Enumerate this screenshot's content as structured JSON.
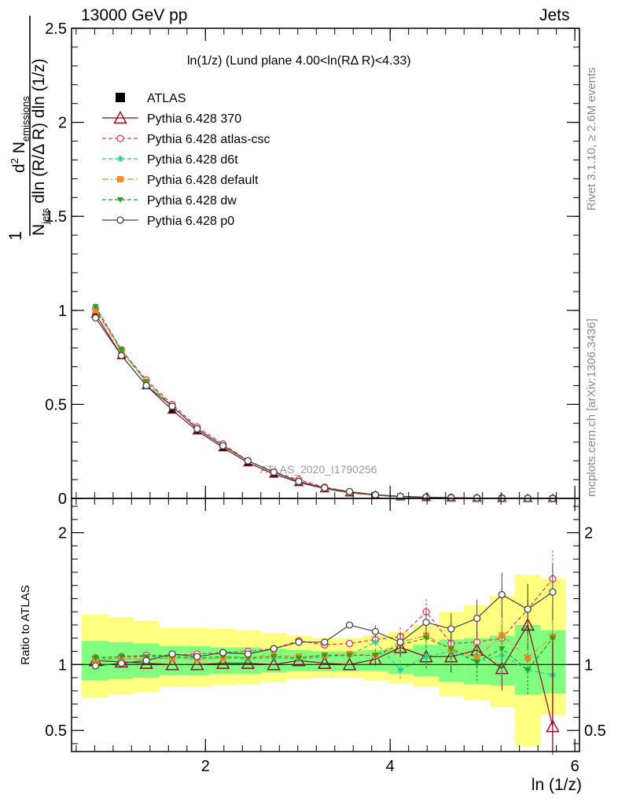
{
  "header": {
    "left": "13000 GeV pp",
    "right": "Jets"
  },
  "side": {
    "rivet": "Rivet 3.1.10, ≥ 2.6M events",
    "mcplots": "mcplots.cern.ch [arXiv:1306.3436]"
  },
  "plot_title": "ln(1/z) (Lund plane 4.00<ln(RΔ R)<4.33)",
  "watermark": "ATLAS_2020_I1790256",
  "ylabel_top": {
    "one": "1",
    "njets": "N",
    "njets_sub": "jets",
    "den_rest": " dln (R/Δ R) dln (1/z)",
    "num_d": "d",
    "num_sup": "2",
    "num_n": " N",
    "num_sub": "emissions"
  },
  "ylabel_ratio": "Ratio to ATLAS",
  "xlabel": "ln (1/z)",
  "colors": {
    "atlas": "#000000",
    "p370": "#8b0a1e",
    "atlas_csc": "#ee3355",
    "d6t": "#22cc99",
    "default": "#f58a2a",
    "dw": "#1aa61a",
    "p0": "#444444",
    "band_yellow": "#ffff80",
    "band_green": "#80ff80"
  },
  "chart_data": [
    {
      "type": "line",
      "panel": "main",
      "xlim": [
        0.55,
        6.05
      ],
      "ylim": [
        0,
        2.5
      ],
      "yticks": [
        "0",
        "0.5",
        "1",
        "1.5",
        "2",
        "2.5"
      ],
      "x": [
        0.81,
        1.09,
        1.36,
        1.64,
        1.91,
        2.19,
        2.46,
        2.74,
        3.01,
        3.29,
        3.56,
        3.84,
        4.11,
        4.39,
        4.66,
        4.94,
        5.21,
        5.49,
        5.76
      ],
      "series": [
        {
          "name": "ATLAS",
          "style": "data",
          "values": [
            0.98,
            0.76,
            0.6,
            0.47,
            0.36,
            0.27,
            0.19,
            0.13,
            0.085,
            0.052,
            0.03,
            0.017,
            0.009,
            0.005,
            0.003,
            0.0015,
            0.0008,
            0.0004,
            0.0002
          ]
        },
        {
          "name": "Pythia 6.428 370",
          "style": "370",
          "values": [
            0.98,
            0.76,
            0.6,
            0.47,
            0.36,
            0.27,
            0.19,
            0.13,
            0.085,
            0.052,
            0.03,
            0.017,
            0.009,
            0.005,
            0.003,
            0.0015,
            0.0008,
            0.0004,
            0.0002
          ]
        },
        {
          "name": "Pythia 6.428 atlas-csc",
          "style": "csc",
          "values": [
            1.01,
            0.79,
            0.63,
            0.5,
            0.38,
            0.29,
            0.2,
            0.14,
            0.1,
            0.06,
            0.036,
            0.02,
            0.011,
            0.007,
            0.004,
            0.002,
            0.001,
            0.0005,
            0.0003
          ]
        },
        {
          "name": "Pythia 6.428 d6t",
          "style": "d6t",
          "values": [
            1.02,
            0.79,
            0.62,
            0.49,
            0.37,
            0.28,
            0.2,
            0.14,
            0.09,
            0.056,
            0.034,
            0.02,
            0.009,
            0.006,
            0.003,
            0.0015,
            0.0008,
            0.0004,
            0.0002
          ]
        },
        {
          "name": "Pythia 6.428 default",
          "style": "default",
          "values": [
            1.0,
            0.78,
            0.62,
            0.49,
            0.37,
            0.28,
            0.2,
            0.14,
            0.09,
            0.055,
            0.033,
            0.018,
            0.01,
            0.006,
            0.003,
            0.0016,
            0.0009,
            0.0004,
            0.0002
          ]
        },
        {
          "name": "Pythia 6.428 dw",
          "style": "dw",
          "values": [
            1.02,
            0.79,
            0.62,
            0.49,
            0.37,
            0.28,
            0.2,
            0.14,
            0.09,
            0.056,
            0.034,
            0.019,
            0.01,
            0.006,
            0.003,
            0.0016,
            0.0009,
            0.0004,
            0.0002
          ]
        },
        {
          "name": "Pythia 6.428 p0",
          "style": "p0",
          "values": [
            0.96,
            0.76,
            0.6,
            0.49,
            0.37,
            0.28,
            0.2,
            0.14,
            0.09,
            0.056,
            0.036,
            0.019,
            0.011,
            0.007,
            0.004,
            0.002,
            0.0012,
            0.0006,
            0.0003
          ]
        }
      ]
    },
    {
      "type": "line",
      "panel": "ratio",
      "xlim": [
        0.55,
        6.05
      ],
      "ylim": [
        0.34,
        2.26
      ],
      "yticks": [
        "0.5",
        "1",
        "2"
      ],
      "xticks": [
        "2",
        "4",
        "6"
      ],
      "x": [
        0.81,
        1.09,
        1.36,
        1.64,
        1.91,
        2.19,
        2.46,
        2.74,
        3.01,
        3.29,
        3.56,
        3.84,
        4.11,
        4.39,
        4.66,
        4.94,
        5.21,
        5.49,
        5.76
      ],
      "bands": {
        "edges": [
          0.66,
          0.95,
          1.22,
          1.5,
          1.77,
          2.05,
          2.33,
          2.6,
          2.88,
          3.15,
          3.43,
          3.7,
          3.98,
          4.25,
          4.53,
          4.8,
          5.08,
          5.35,
          5.63,
          5.9
        ],
        "yellow_lo": [
          0.75,
          0.77,
          0.79,
          0.83,
          0.83,
          0.84,
          0.85,
          0.87,
          0.89,
          0.9,
          0.9,
          0.88,
          0.86,
          0.83,
          0.76,
          0.73,
          0.68,
          0.38,
          0.62
        ],
        "yellow_hi": [
          1.38,
          1.36,
          1.33,
          1.28,
          1.28,
          1.27,
          1.26,
          1.24,
          1.22,
          1.2,
          1.2,
          1.22,
          1.25,
          1.3,
          1.4,
          1.45,
          1.52,
          1.68,
          1.65
        ],
        "green_lo": [
          0.88,
          0.89,
          0.9,
          0.92,
          0.92,
          0.93,
          0.93,
          0.94,
          0.95,
          0.95,
          0.95,
          0.95,
          0.93,
          0.91,
          0.87,
          0.85,
          0.84,
          0.77,
          0.78
        ],
        "green_hi": [
          1.18,
          1.17,
          1.16,
          1.14,
          1.14,
          1.13,
          1.13,
          1.12,
          1.11,
          1.1,
          1.1,
          1.11,
          1.12,
          1.15,
          1.19,
          1.2,
          1.22,
          1.3,
          1.26
        ]
      },
      "series": [
        {
          "name": "Pythia 6.428 370",
          "style": "370",
          "values": [
            1.03,
            1.02,
            1.01,
            1.0,
            1.0,
            1.01,
            1.01,
            1.0,
            1.03,
            1.01,
            1.0,
            1.04,
            1.13,
            1.06,
            1.06,
            1.11,
            0.97,
            1.3,
            0.53
          ]
        },
        {
          "name": "Pythia 6.428 atlas-csc",
          "style": "csc",
          "values": [
            1.05,
            1.06,
            1.07,
            1.07,
            1.08,
            1.09,
            1.1,
            1.12,
            1.18,
            1.15,
            1.16,
            1.19,
            1.21,
            1.4,
            1.16,
            1.17,
            1.2,
            1.42,
            1.65
          ]
        },
        {
          "name": "Pythia 6.428 d6t",
          "style": "d6t",
          "values": [
            1.04,
            1.05,
            1.04,
            1.05,
            1.04,
            1.05,
            1.04,
            1.05,
            1.04,
            1.06,
            1.07,
            1.17,
            0.96,
            1.06,
            1.1,
            1.02,
            1.07,
            0.96,
            0.92
          ]
        },
        {
          "name": "Pythia 6.428 default",
          "style": "default",
          "values": [
            1.03,
            1.04,
            1.04,
            1.05,
            1.04,
            1.05,
            1.06,
            1.07,
            1.06,
            1.07,
            1.08,
            1.07,
            1.17,
            1.22,
            1.12,
            1.05,
            1.22,
            1.05,
            1.21
          ]
        },
        {
          "name": "Pythia 6.428 dw",
          "style": "dw",
          "values": [
            1.05,
            1.06,
            1.06,
            1.06,
            1.05,
            1.06,
            1.05,
            1.06,
            1.05,
            1.07,
            1.07,
            1.07,
            1.15,
            1.2,
            1.12,
            1.02,
            1.12,
            0.96,
            1.2
          ]
        },
        {
          "name": "Pythia 6.428 p0",
          "style": "p0",
          "values": [
            0.99,
            1.01,
            1.03,
            1.08,
            1.06,
            1.09,
            1.08,
            1.12,
            1.17,
            1.17,
            1.3,
            1.25,
            1.17,
            1.32,
            1.27,
            1.35,
            1.53,
            1.42,
            1.55
          ]
        }
      ]
    }
  ]
}
